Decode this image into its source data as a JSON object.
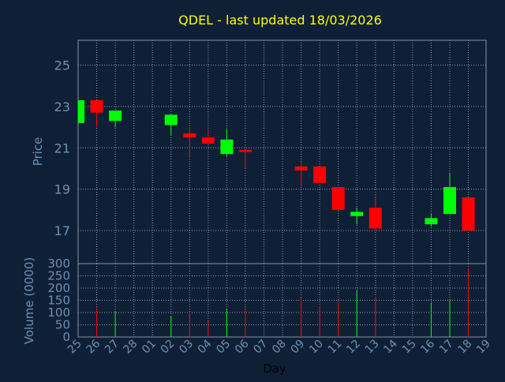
{
  "colors": {
    "background": "#0f2036",
    "axis": "#7f93a8",
    "grid": "#8a9cb0",
    "title": "#ffff00",
    "label": "#6f8fb3",
    "tick": "#6f8fb3",
    "up": "#00ff00",
    "down": "#ff0000"
  },
  "chart_data": {
    "type": "candlestick",
    "title": "QDEL - last updated 18/03/2026",
    "xlabel": "Day",
    "ylabel": "Price",
    "volume_label": "Volume (0000)",
    "grid": true,
    "price_range": [
      15.4,
      26.2
    ],
    "price_ticks": [
      17,
      19,
      21,
      23,
      25
    ],
    "volume_range": [
      0,
      300
    ],
    "volume_ticks": [
      0,
      50,
      100,
      150,
      200,
      250,
      300
    ],
    "x_ticks": [
      "25",
      "26",
      "27",
      "28",
      "01",
      "02",
      "03",
      "04",
      "05",
      "06",
      "07",
      "08",
      "09",
      "10",
      "11",
      "12",
      "13",
      "14",
      "15",
      "16",
      "17",
      "18",
      "19"
    ],
    "candles": [
      {
        "day": "25",
        "open": 22.2,
        "high": 23.3,
        "low": 22.2,
        "close": 23.3,
        "volume": 0
      },
      {
        "day": "26",
        "open": 23.3,
        "high": 23.3,
        "low": 22.0,
        "close": 22.7,
        "volume": 120
      },
      {
        "day": "27",
        "open": 22.3,
        "high": 22.8,
        "low": 22.0,
        "close": 22.8,
        "volume": 105
      },
      {
        "day": "02",
        "open": 22.1,
        "high": 22.6,
        "low": 21.6,
        "close": 22.6,
        "volume": 85
      },
      {
        "day": "03",
        "open": 21.7,
        "high": 22.0,
        "low": 20.6,
        "close": 21.5,
        "volume": 105
      },
      {
        "day": "04",
        "open": 21.5,
        "high": 21.8,
        "low": 21.2,
        "close": 21.2,
        "volume": 65
      },
      {
        "day": "05",
        "open": 20.7,
        "high": 21.9,
        "low": 20.6,
        "close": 21.4,
        "volume": 115
      },
      {
        "day": "06",
        "open": 20.9,
        "high": 20.9,
        "low": 20.0,
        "close": 20.8,
        "volume": 120
      },
      {
        "day": "09",
        "open": 20.1,
        "high": 20.3,
        "low": 19.2,
        "close": 19.9,
        "volume": 160
      },
      {
        "day": "10",
        "open": 20.1,
        "high": 20.1,
        "low": 19.3,
        "close": 19.3,
        "volume": 125
      },
      {
        "day": "11",
        "open": 19.1,
        "high": 19.1,
        "low": 17.9,
        "close": 18.0,
        "volume": 145
      },
      {
        "day": "12",
        "open": 17.7,
        "high": 18.1,
        "low": 17.3,
        "close": 17.9,
        "volume": 190
      },
      {
        "day": "13",
        "open": 18.1,
        "high": 18.7,
        "low": 17.0,
        "close": 17.1,
        "volume": 165
      },
      {
        "day": "16",
        "open": 17.3,
        "high": 17.8,
        "low": 17.2,
        "close": 17.6,
        "volume": 140
      },
      {
        "day": "17",
        "open": 17.8,
        "high": 19.8,
        "low": 17.8,
        "close": 19.1,
        "volume": 150
      },
      {
        "day": "18",
        "open": 18.6,
        "high": 18.6,
        "low": 17.0,
        "close": 17.0,
        "volume": 280
      }
    ]
  }
}
